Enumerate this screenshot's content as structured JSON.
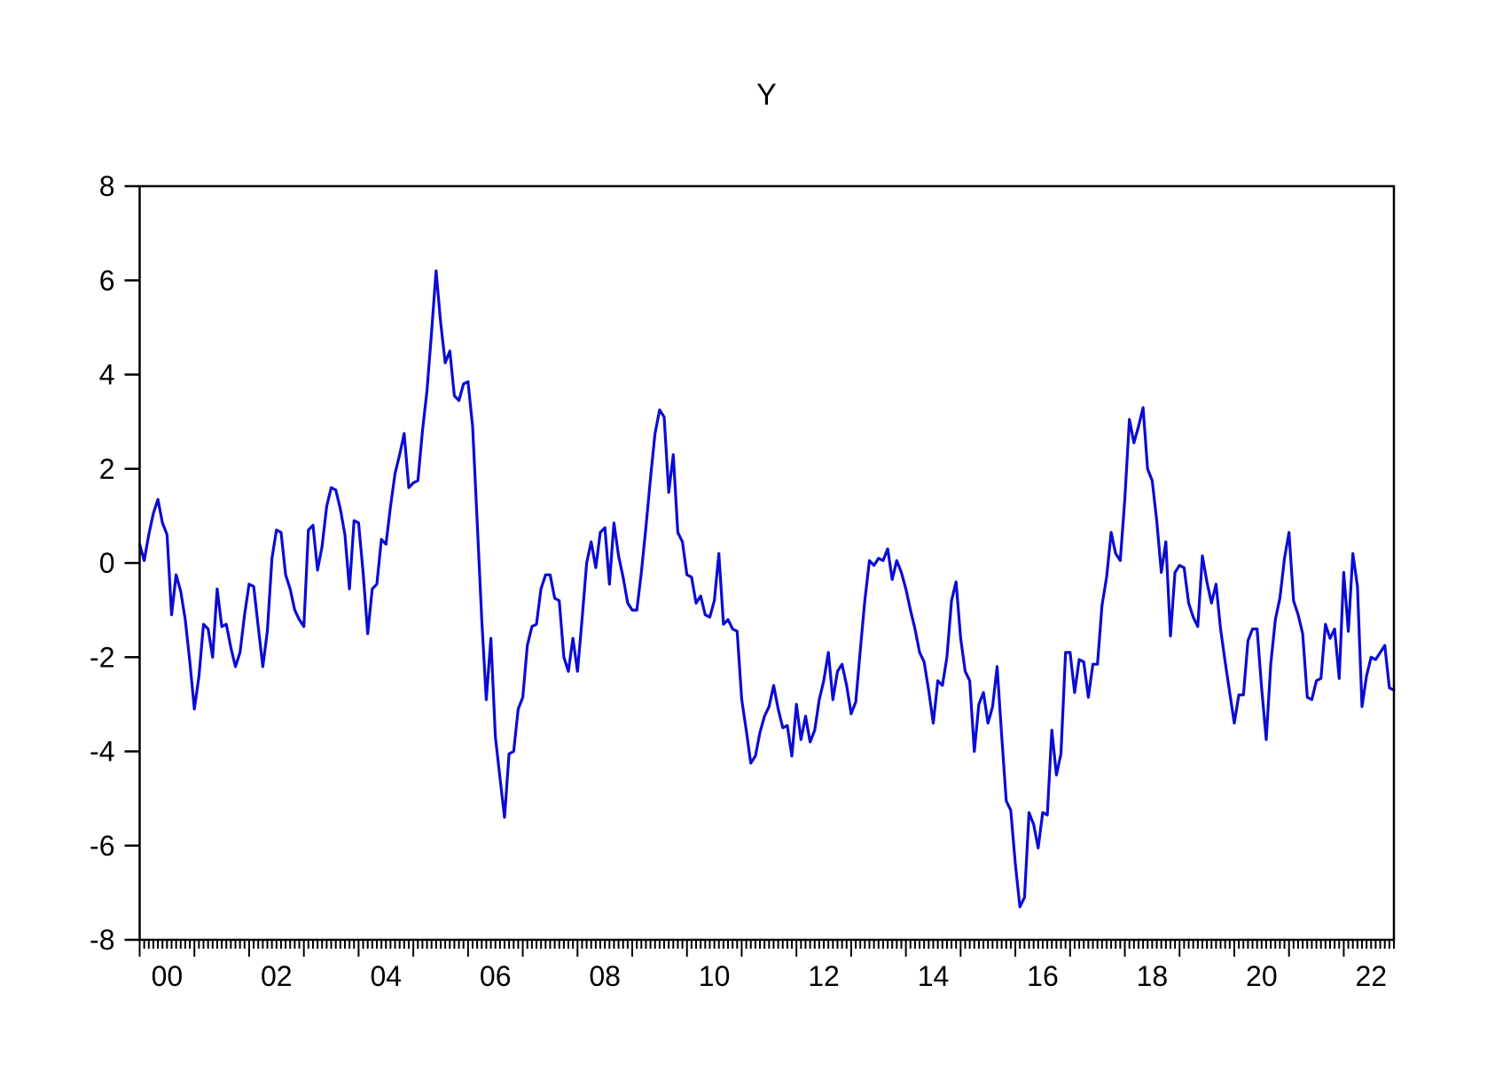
{
  "title": "Y",
  "chart_data": {
    "type": "line",
    "title": "Y",
    "series": [
      {
        "name": "Y",
        "color": "#0b0bd6",
        "frequency": "monthly",
        "start": "2000M01",
        "end": "2022M12",
        "values": [
          0.4,
          0.05,
          0.6,
          1.05,
          1.35,
          0.85,
          0.6,
          -1.1,
          -0.25,
          -0.6,
          -1.2,
          -2.1,
          -3.1,
          -2.4,
          -1.3,
          -1.4,
          -2.0,
          -0.55,
          -1.35,
          -1.3,
          -1.8,
          -2.2,
          -1.9,
          -1.1,
          -0.45,
          -0.5,
          -1.35,
          -2.2,
          -1.45,
          0.1,
          0.7,
          0.65,
          -0.25,
          -0.55,
          -1.0,
          -1.2,
          -1.35,
          0.7,
          0.8,
          -0.15,
          0.35,
          1.2,
          1.6,
          1.55,
          1.15,
          0.6,
          -0.55,
          0.9,
          0.85,
          -0.2,
          -1.5,
          -0.55,
          -0.45,
          0.5,
          0.4,
          1.2,
          1.9,
          2.3,
          2.75,
          1.6,
          1.7,
          1.75,
          2.8,
          3.65,
          4.9,
          6.2,
          5.1,
          4.25,
          4.5,
          3.55,
          3.45,
          3.8,
          3.85,
          2.9,
          0.9,
          -1.2,
          -2.9,
          -1.6,
          -3.7,
          -4.55,
          -5.4,
          -4.05,
          -4.0,
          -3.1,
          -2.85,
          -1.75,
          -1.35,
          -1.3,
          -0.55,
          -0.25,
          -0.25,
          -0.75,
          -0.8,
          -2.0,
          -2.3,
          -1.6,
          -2.3,
          -1.2,
          0.0,
          0.45,
          -0.1,
          0.65,
          0.75,
          -0.45,
          0.85,
          0.15,
          -0.3,
          -0.85,
          -1.0,
          -1.0,
          -0.2,
          0.75,
          1.8,
          2.75,
          3.25,
          3.1,
          1.5,
          2.3,
          0.65,
          0.45,
          -0.25,
          -0.3,
          -0.85,
          -0.7,
          -1.1,
          -1.15,
          -0.8,
          0.2,
          -1.3,
          -1.2,
          -1.4,
          -1.45,
          -2.9,
          -3.55,
          -4.25,
          -4.1,
          -3.6,
          -3.25,
          -3.05,
          -2.6,
          -3.1,
          -3.5,
          -3.45,
          -4.1,
          -3.0,
          -3.75,
          -3.25,
          -3.8,
          -3.55,
          -2.9,
          -2.5,
          -1.9,
          -2.9,
          -2.3,
          -2.15,
          -2.6,
          -3.2,
          -2.95,
          -1.85,
          -0.8,
          0.05,
          -0.05,
          0.1,
          0.05,
          0.3,
          -0.35,
          0.05,
          -0.2,
          -0.55,
          -1.0,
          -1.4,
          -1.9,
          -2.1,
          -2.7,
          -3.4,
          -2.5,
          -2.6,
          -2.0,
          -0.8,
          -0.4,
          -1.6,
          -2.3,
          -2.5,
          -4.0,
          -3.0,
          -2.75,
          -3.4,
          -3.05,
          -2.2,
          -3.65,
          -5.05,
          -5.25,
          -6.4,
          -7.3,
          -7.1,
          -5.3,
          -5.55,
          -6.05,
          -5.3,
          -5.35,
          -3.55,
          -4.5,
          -4.05,
          -1.9,
          -1.9,
          -2.75,
          -2.05,
          -2.1,
          -2.85,
          -2.15,
          -2.15,
          -0.9,
          -0.3,
          0.65,
          0.2,
          0.05,
          1.35,
          3.05,
          2.55,
          2.9,
          3.3,
          2.0,
          1.75,
          0.9,
          -0.2,
          0.45,
          -1.55,
          -0.2,
          -0.05,
          -0.1,
          -0.85,
          -1.15,
          -1.35,
          0.15,
          -0.4,
          -0.85,
          -0.45,
          -1.4,
          -2.1,
          -2.75,
          -3.4,
          -2.8,
          -2.8,
          -1.65,
          -1.4,
          -1.4,
          -2.65,
          -3.75,
          -2.15,
          -1.2,
          -0.75,
          0.1,
          0.65,
          -0.8,
          -1.1,
          -1.5,
          -2.85,
          -2.9,
          -2.5,
          -2.45,
          -1.3,
          -1.6,
          -1.4,
          -2.45,
          -0.2,
          -1.45,
          0.2,
          -0.5,
          -3.05,
          -2.4,
          -2.0,
          -2.05,
          -1.9,
          -1.75,
          -2.65,
          -2.7
        ]
      }
    ],
    "xlabel": "",
    "ylabel": "",
    "ylim": [
      -8,
      8
    ],
    "y_ticks": [
      8,
      6,
      4,
      2,
      0,
      -2,
      -4,
      -6,
      -8
    ],
    "x_start_year": 2000,
    "x_end_year": 2022,
    "x_tick_labels": [
      "00",
      "02",
      "04",
      "06",
      "08",
      "10",
      "12",
      "14",
      "16",
      "18",
      "20",
      "22"
    ],
    "x_label_year_step": 2,
    "minor_ticks": "monthly",
    "major_ticks": "yearly",
    "grid": false,
    "legend": false,
    "frame_color": "#000000"
  }
}
